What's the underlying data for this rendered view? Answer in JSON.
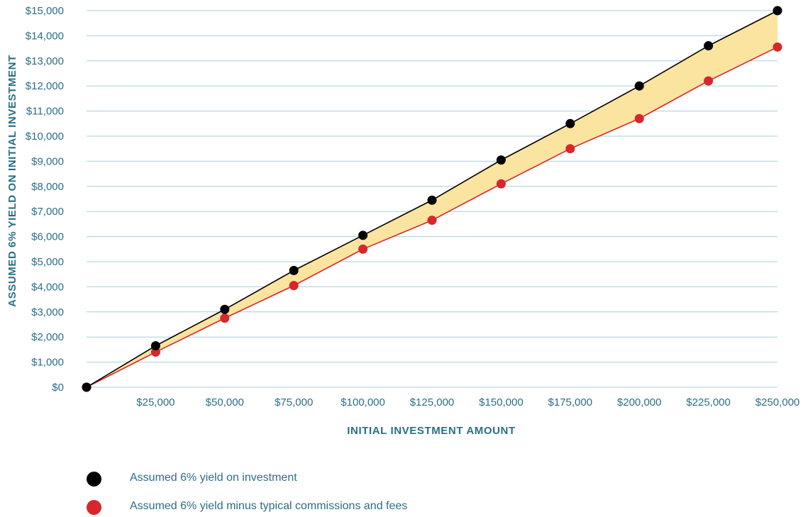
{
  "chart_data": {
    "type": "line",
    "xlabel": "INITIAL INVESTMENT AMOUNT",
    "ylabel": "ASSUMED 6% YIELD ON INITIAL INVESTMENT",
    "x": [
      0,
      25000,
      50000,
      75000,
      100000,
      125000,
      150000,
      175000,
      200000,
      225000,
      250000
    ],
    "x_tick_values": [
      25000,
      50000,
      75000,
      100000,
      125000,
      150000,
      175000,
      200000,
      225000,
      250000
    ],
    "x_tick_labels": [
      "$25,000",
      "$50,000",
      "$75,000",
      "$100,000",
      "$125,000",
      "$150,000",
      "$175,000",
      "$200,000",
      "$225,000",
      "$250,000"
    ],
    "y_tick_values": [
      0,
      1000,
      2000,
      3000,
      4000,
      5000,
      6000,
      7000,
      8000,
      9000,
      10000,
      11000,
      12000,
      13000,
      14000,
      15000
    ],
    "y_tick_labels": [
      "$0",
      "$1,000",
      "$2,000",
      "$3,000",
      "$4,000",
      "$5,000",
      "$6,000",
      "$7,000",
      "$8,000",
      "$9,000",
      "$10,000",
      "$11,000",
      "$12,000",
      "$13,000",
      "$14,000",
      "$15,000"
    ],
    "xlim": [
      0,
      250000
    ],
    "ylim": [
      0,
      15000
    ],
    "grid": "horizontal",
    "legend_position": "bottom",
    "fill_between_color": "#fbe3a0",
    "series": [
      {
        "name": "Assumed 6% yield on investment",
        "color": "#000000",
        "values": [
          0,
          1650,
          3100,
          4650,
          6050,
          7450,
          9050,
          10500,
          12000,
          13600,
          15000
        ]
      },
      {
        "name": "Assumed 6% yield minus typical commissions and fees",
        "color": "#d7262c",
        "values": [
          0,
          1400,
          2750,
          4050,
          5500,
          6650,
          8100,
          9500,
          10700,
          12200,
          13550
        ]
      }
    ]
  }
}
